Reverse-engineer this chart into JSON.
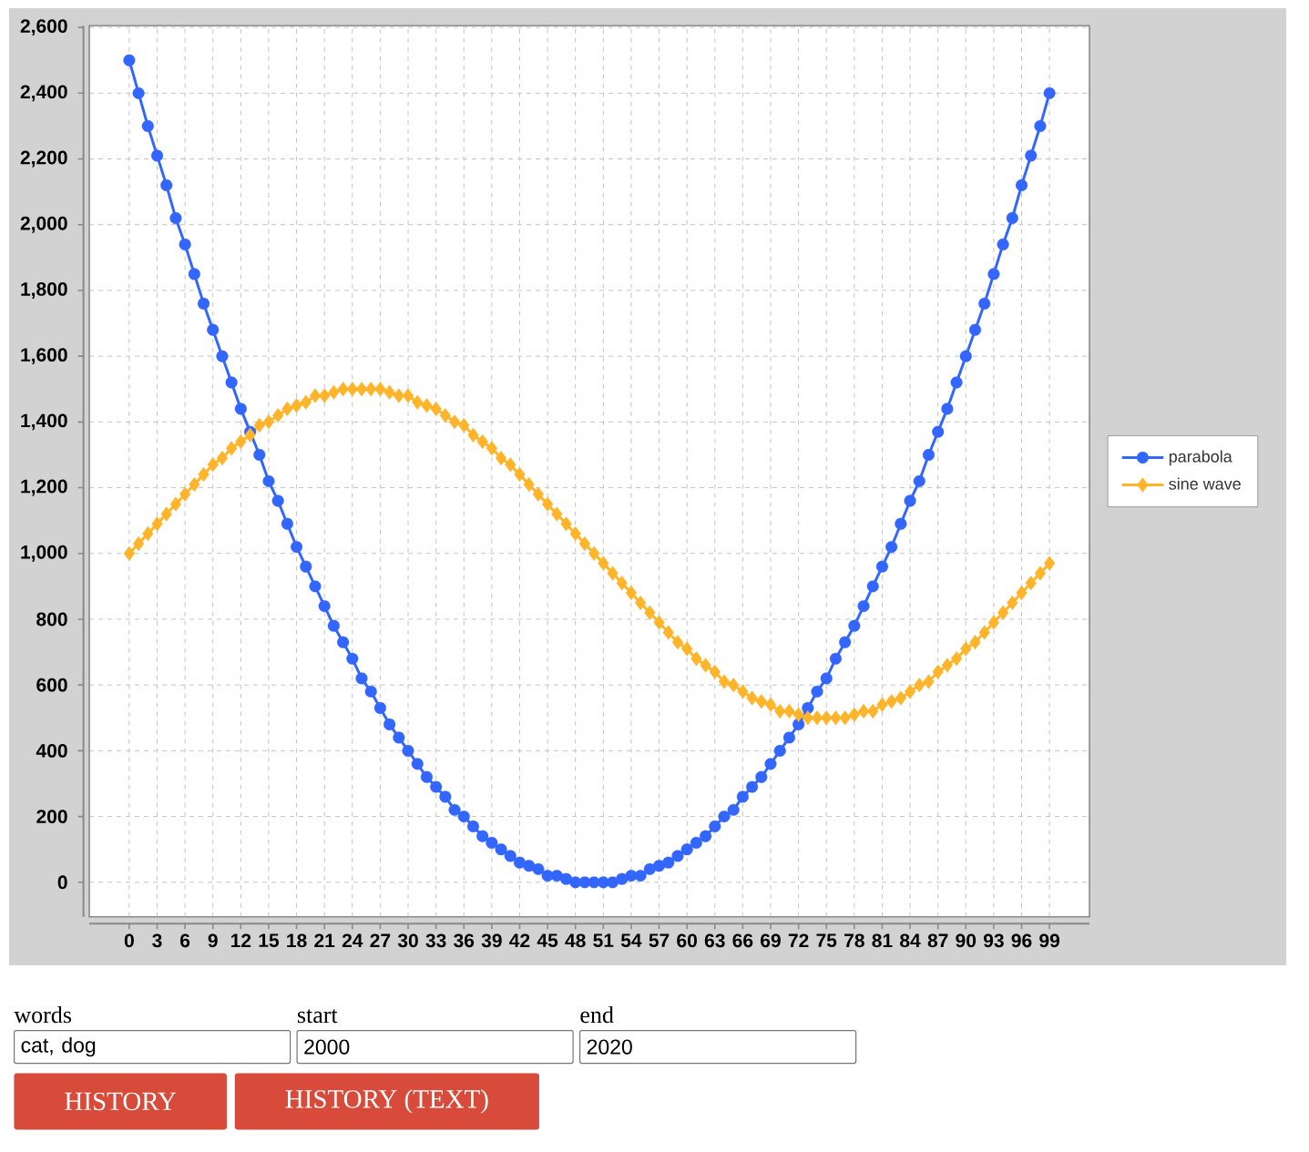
{
  "chart_data": {
    "type": "line",
    "x": [
      0,
      1,
      2,
      3,
      4,
      5,
      6,
      7,
      8,
      9,
      10,
      11,
      12,
      13,
      14,
      15,
      16,
      17,
      18,
      19,
      20,
      21,
      22,
      23,
      24,
      25,
      26,
      27,
      28,
      29,
      30,
      31,
      32,
      33,
      34,
      35,
      36,
      37,
      38,
      39,
      40,
      41,
      42,
      43,
      44,
      45,
      46,
      47,
      48,
      49,
      50,
      51,
      52,
      53,
      54,
      55,
      56,
      57,
      58,
      59,
      60,
      61,
      62,
      63,
      64,
      65,
      66,
      67,
      68,
      69,
      70,
      71,
      72,
      73,
      74,
      75,
      76,
      77,
      78,
      79,
      80,
      81,
      82,
      83,
      84,
      85,
      86,
      87,
      88,
      89,
      90,
      91,
      92,
      93,
      94,
      95,
      96,
      97,
      98,
      99
    ],
    "xlim": [
      -4.3,
      103.3
    ],
    "ylim": [
      -105,
      2605
    ],
    "xticks": [
      0,
      3,
      6,
      9,
      12,
      15,
      18,
      21,
      24,
      27,
      30,
      33,
      36,
      39,
      42,
      45,
      48,
      51,
      54,
      57,
      60,
      63,
      66,
      69,
      72,
      75,
      78,
      81,
      84,
      87,
      90,
      93,
      96,
      99
    ],
    "yticks": [
      0,
      200,
      400,
      600,
      800,
      {
        "value": 1000,
        "label": "1,000"
      },
      {
        "value": 1200,
        "label": "1,200"
      },
      {
        "value": 1400,
        "label": "1,400"
      },
      {
        "value": 1600,
        "label": "1,600"
      },
      {
        "value": 1800,
        "label": "1,800"
      },
      {
        "value": 2000,
        "label": "2,000"
      },
      {
        "value": 2200,
        "label": "2,200"
      },
      {
        "value": 2400,
        "label": "2,400"
      },
      {
        "value": 2600,
        "label": "2,600"
      }
    ],
    "grid": true,
    "legend": "right",
    "series": [
      {
        "name": "parabola",
        "color": "#3366ff",
        "marker": "circle",
        "values": [
          2500,
          2400,
          2300,
          2210,
          2120,
          2020,
          1940,
          1850,
          1760,
          1680,
          1600,
          1520,
          1440,
          1370,
          1300,
          1220,
          1160,
          1090,
          1020,
          960,
          900,
          840,
          780,
          730,
          680,
          620,
          580,
          530,
          480,
          440,
          400,
          360,
          320,
          290,
          260,
          220,
          200,
          170,
          140,
          120,
          100,
          80,
          60,
          50,
          40,
          20,
          20,
          10,
          0,
          0,
          0,
          0,
          0,
          10,
          20,
          20,
          40,
          50,
          60,
          80,
          100,
          120,
          140,
          170,
          200,
          220,
          260,
          290,
          320,
          360,
          400,
          440,
          480,
          530,
          580,
          620,
          680,
          730,
          780,
          840,
          900,
          960,
          1020,
          1090,
          1160,
          1220,
          1300,
          1370,
          1440,
          1520,
          1600,
          1680,
          1760,
          1850,
          1940,
          2020,
          2120,
          2210,
          2300,
          2400
        ]
      },
      {
        "name": "sine wave",
        "color": "#ffb42a",
        "marker": "diamond",
        "values": [
          1000,
          1030,
          1060,
          1090,
          1120,
          1150,
          1180,
          1210,
          1240,
          1270,
          1290,
          1320,
          1340,
          1360,
          1390,
          1400,
          1420,
          1440,
          1450,
          1460,
          1480,
          1480,
          1490,
          1500,
          1500,
          1500,
          1500,
          1500,
          1490,
          1480,
          1480,
          1460,
          1450,
          1440,
          1420,
          1400,
          1390,
          1360,
          1340,
          1320,
          1290,
          1270,
          1240,
          1210,
          1180,
          1150,
          1120,
          1090,
          1060,
          1030,
          1000,
          970,
          940,
          910,
          880,
          850,
          820,
          790,
          760,
          730,
          710,
          680,
          660,
          640,
          610,
          600,
          580,
          560,
          550,
          540,
          520,
          520,
          510,
          500,
          500,
          500,
          500,
          500,
          510,
          520,
          520,
          540,
          550,
          560,
          580,
          600,
          610,
          640,
          660,
          680,
          710,
          730,
          760,
          790,
          820,
          850,
          880,
          910,
          940,
          970
        ]
      }
    ],
    "annotations": [
      "words",
      "cat, dog",
      "start",
      "2000",
      "end",
      "2020",
      "HISTORY",
      "HISTORY (TEXT)"
    ]
  }
}
